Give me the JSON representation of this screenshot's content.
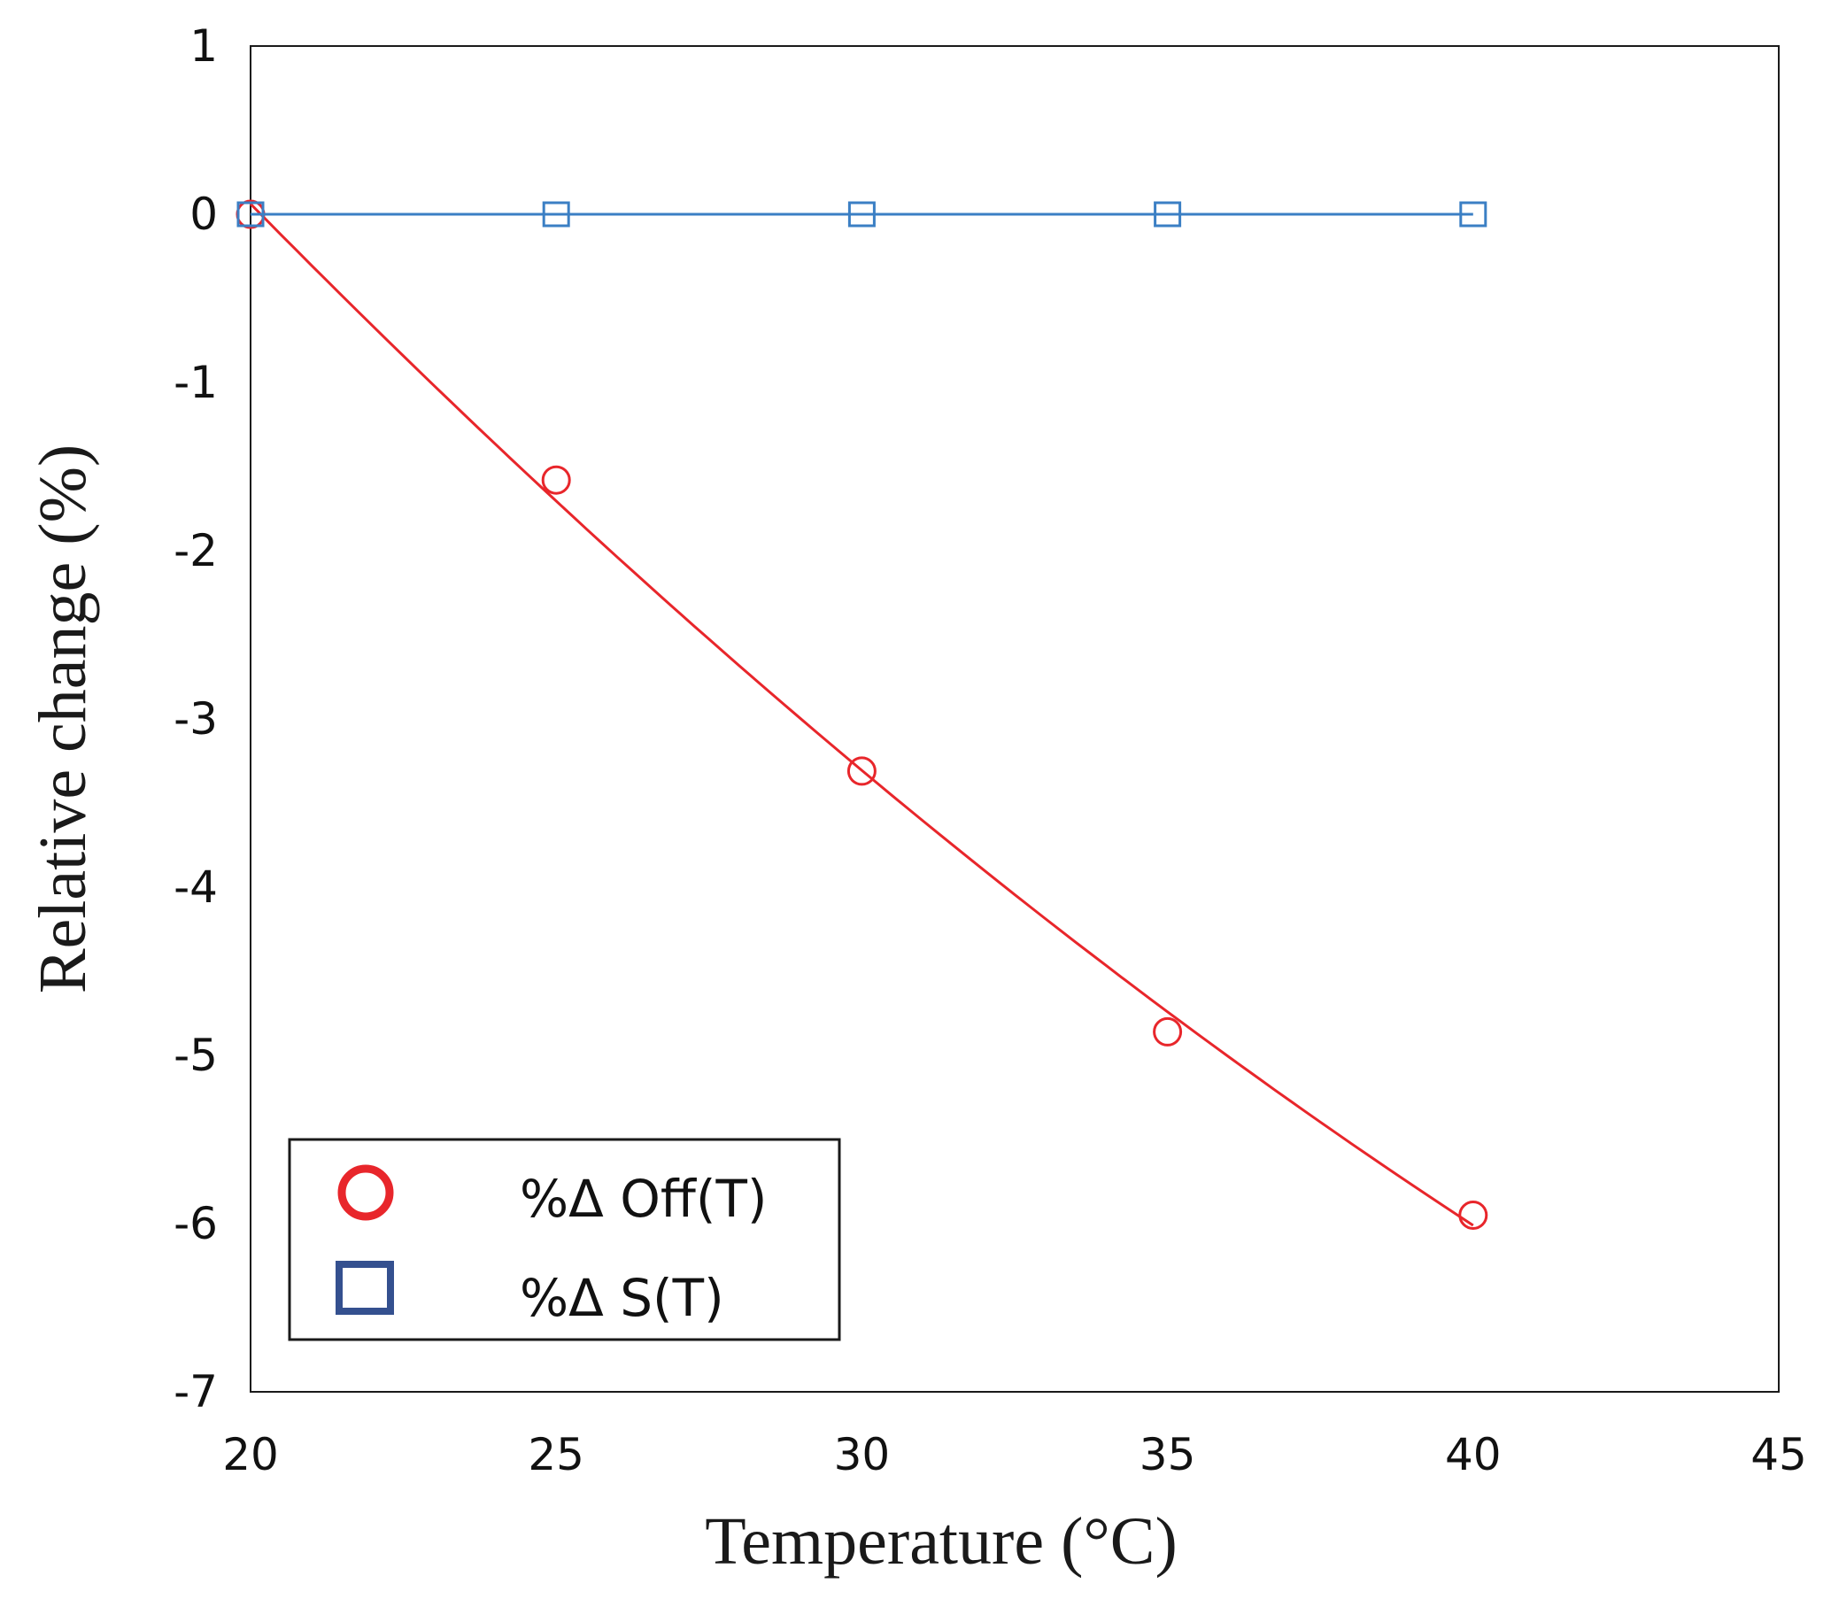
{
  "chart_data": {
    "type": "line",
    "title": "",
    "xlabel": "Temperature (°C)",
    "ylabel": "Relative change  (%)",
    "xlim": [
      20,
      45
    ],
    "ylim": [
      -7,
      1
    ],
    "xticks": [
      20,
      25,
      30,
      35,
      40,
      45
    ],
    "yticks": [
      1,
      0,
      -1,
      -2,
      -3,
      -4,
      -5,
      -6,
      -7
    ],
    "grid": false,
    "legend_position": "bottom-left",
    "series": [
      {
        "name": "%Δ Off(T)",
        "marker": "circle",
        "color": "#e8262b",
        "legend_color": "#e8262b",
        "x": [
          20,
          25,
          30,
          35,
          40
        ],
        "values": [
          0,
          -1.58,
          -3.31,
          -4.86,
          -5.95
        ],
        "fit": "smooth"
      },
      {
        "name": "%Δ S(T)",
        "marker": "square",
        "color": "#3b7fc4",
        "legend_color": "#34508f",
        "x": [
          20,
          25,
          30,
          35,
          40
        ],
        "values": [
          0,
          0,
          0,
          0,
          0
        ],
        "fit": "line"
      }
    ]
  }
}
